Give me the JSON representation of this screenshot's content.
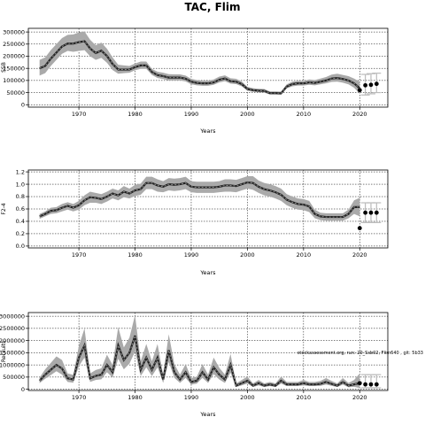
{
  "page": {
    "title": "TAC, Flim"
  },
  "chart_data": [
    {
      "type": "line",
      "id": "tac",
      "ylabel": "SSB",
      "xlabel": "Years",
      "xlim": [
        1961,
        2025
      ],
      "ylim": [
        -10000,
        315000
      ],
      "xticks": [
        1970,
        1980,
        1990,
        2000,
        2010,
        2020
      ],
      "yticks": [
        0,
        50000,
        100000,
        150000,
        200000,
        250000,
        300000
      ],
      "ytick_labels": [
        "0",
        "50000",
        "100000",
        "150000",
        "200000",
        "250000",
        "300000"
      ],
      "grid": true,
      "series": [
        {
          "x": [
            1963,
            1964,
            1965,
            1966,
            1967,
            1968,
            1969,
            1970,
            1971,
            1972,
            1973,
            1974,
            1975,
            1976,
            1977,
            1978,
            1979,
            1980,
            1981,
            1982,
            1983,
            1984,
            1985,
            1986,
            1987,
            1988,
            1989,
            1990,
            1991,
            1992,
            1993,
            1994,
            1995,
            1996,
            1997,
            1998,
            1999,
            2000,
            2001,
            2002,
            2003,
            2004,
            2005,
            2006,
            2007,
            2008,
            2009,
            2010,
            2011,
            2012,
            2013,
            2014,
            2015,
            2016,
            2017,
            2018,
            2019,
            2020
          ],
          "y": [
            150000,
            160000,
            190000,
            215000,
            240000,
            252000,
            252000,
            258000,
            262000,
            232000,
            213000,
            223000,
            201000,
            168000,
            145000,
            145000,
            145000,
            155000,
            162000,
            162000,
            135000,
            122000,
            118000,
            112000,
            112000,
            112000,
            107000,
            95000,
            90000,
            88000,
            88000,
            92000,
            103000,
            108000,
            97000,
            95000,
            85000,
            65000,
            60000,
            58000,
            57000,
            48000,
            48000,
            47000,
            75000,
            85000,
            88000,
            88000,
            92000,
            90000,
            95000,
            100000,
            108000,
            110000,
            106000,
            100000,
            88000,
            68000
          ],
          "lower": [
            120000,
            130000,
            160000,
            185000,
            210000,
            222000,
            218000,
            222000,
            225000,
            200000,
            185000,
            193000,
            173000,
            143000,
            128000,
            130000,
            132000,
            142000,
            148000,
            148000,
            123000,
            110000,
            106000,
            100000,
            100000,
            100000,
            96000,
            84000,
            80000,
            78000,
            78000,
            82000,
            92000,
            97000,
            87000,
            85000,
            76000,
            58000,
            53000,
            51000,
            50000,
            42000,
            42000,
            41000,
            67000,
            76000,
            79000,
            79000,
            82000,
            80000,
            84000,
            88000,
            94000,
            95000,
            91000,
            84000,
            70000,
            45000
          ],
          "upper": [
            185000,
            195000,
            225000,
            250000,
            275000,
            288000,
            290000,
            298000,
            302000,
            268000,
            245000,
            256000,
            231000,
            195000,
            165000,
            162000,
            160000,
            170000,
            178000,
            178000,
            148000,
            136000,
            132000,
            126000,
            125000,
            125000,
            120000,
            107000,
            102000,
            99000,
            99000,
            104000,
            116000,
            121000,
            109000,
            107000,
            96000,
            74000,
            68000,
            66000,
            65000,
            55000,
            55000,
            54000,
            84000,
            95000,
            98000,
            98000,
            104000,
            102000,
            108000,
            114000,
            124000,
            128000,
            123000,
            118000,
            108000,
            95000
          ]
        }
      ],
      "points": [
        {
          "x": 2020,
          "y": 60000
        },
        {
          "x": 2021,
          "y": 80000
        },
        {
          "x": 2022,
          "y": 82000
        },
        {
          "x": 2023,
          "y": 86000
        }
      ],
      "intervals": [
        {
          "x": 2021,
          "lower": 40000,
          "upper": 125000
        },
        {
          "x": 2022,
          "lower": 45000,
          "upper": 128000
        },
        {
          "x": 2023,
          "lower": 50000,
          "upper": 130000
        }
      ]
    },
    {
      "type": "line",
      "id": "fbar",
      "ylabel": "F2-4",
      "xlabel": "Years",
      "xlim": [
        1961,
        2025
      ],
      "ylim": [
        -0.03,
        1.23
      ],
      "xticks": [
        1970,
        1980,
        1990,
        2000,
        2010,
        2020
      ],
      "yticks": [
        0.0,
        0.2,
        0.4,
        0.6,
        0.8,
        1.0,
        1.2
      ],
      "ytick_labels": [
        "0.0",
        "0.2",
        "0.4",
        "0.6",
        "0.8",
        "1.0",
        "1.2"
      ],
      "grid": true,
      "series": [
        {
          "x": [
            1963,
            1964,
            1965,
            1966,
            1967,
            1968,
            1969,
            1970,
            1971,
            1972,
            1973,
            1974,
            1975,
            1976,
            1977,
            1978,
            1979,
            1980,
            1981,
            1982,
            1983,
            1984,
            1985,
            1986,
            1987,
            1988,
            1989,
            1990,
            1991,
            1992,
            1993,
            1994,
            1995,
            1996,
            1997,
            1998,
            1999,
            2000,
            2001,
            2002,
            2003,
            2004,
            2005,
            2006,
            2007,
            2008,
            2009,
            2010,
            2011,
            2012,
            2013,
            2014,
            2015,
            2016,
            2017,
            2018,
            2019,
            2020
          ],
          "y": [
            0.48,
            0.52,
            0.57,
            0.58,
            0.62,
            0.65,
            0.62,
            0.66,
            0.74,
            0.79,
            0.78,
            0.76,
            0.8,
            0.85,
            0.82,
            0.88,
            0.85,
            0.9,
            0.92,
            1.02,
            1.02,
            0.98,
            0.96,
            1.0,
            0.99,
            1.0,
            1.02,
            0.96,
            0.95,
            0.95,
            0.95,
            0.95,
            0.96,
            0.98,
            0.98,
            0.97,
            1.0,
            1.03,
            1.02,
            0.96,
            0.92,
            0.9,
            0.87,
            0.83,
            0.75,
            0.71,
            0.68,
            0.67,
            0.64,
            0.52,
            0.48,
            0.47,
            0.47,
            0.47,
            0.47,
            0.52,
            0.63,
            0.63
          ],
          "lower": [
            0.44,
            0.48,
            0.52,
            0.53,
            0.56,
            0.59,
            0.56,
            0.59,
            0.66,
            0.7,
            0.7,
            0.68,
            0.72,
            0.77,
            0.74,
            0.79,
            0.77,
            0.81,
            0.83,
            0.92,
            0.92,
            0.88,
            0.87,
            0.9,
            0.89,
            0.9,
            0.92,
            0.87,
            0.86,
            0.86,
            0.86,
            0.86,
            0.87,
            0.88,
            0.88,
            0.87,
            0.9,
            0.93,
            0.91,
            0.86,
            0.82,
            0.8,
            0.77,
            0.73,
            0.66,
            0.62,
            0.59,
            0.58,
            0.55,
            0.45,
            0.42,
            0.41,
            0.41,
            0.41,
            0.41,
            0.45,
            0.52,
            0.48
          ],
          "upper": [
            0.52,
            0.56,
            0.62,
            0.63,
            0.68,
            0.71,
            0.68,
            0.73,
            0.82,
            0.88,
            0.86,
            0.84,
            0.88,
            0.93,
            0.9,
            0.97,
            0.93,
            0.99,
            1.01,
            1.12,
            1.12,
            1.08,
            1.05,
            1.1,
            1.09,
            1.1,
            1.12,
            1.05,
            1.04,
            1.04,
            1.04,
            1.04,
            1.05,
            1.08,
            1.08,
            1.07,
            1.1,
            1.13,
            1.13,
            1.06,
            1.02,
            1.0,
            0.97,
            0.93,
            0.84,
            0.8,
            0.77,
            0.76,
            0.73,
            0.59,
            0.54,
            0.53,
            0.53,
            0.53,
            0.53,
            0.59,
            0.74,
            0.78
          ]
        }
      ],
      "points": [
        {
          "x": 2020,
          "y": 0.29
        },
        {
          "x": 2021,
          "y": 0.54
        },
        {
          "x": 2022,
          "y": 0.54
        },
        {
          "x": 2023,
          "y": 0.54
        }
      ],
      "intervals": [
        {
          "x": 2021,
          "lower": 0.38,
          "upper": 0.7
        },
        {
          "x": 2022,
          "lower": 0.38,
          "upper": 0.7
        },
        {
          "x": 2023,
          "lower": 0.38,
          "upper": 0.7
        }
      ]
    },
    {
      "type": "line",
      "id": "rec",
      "ylabel": "Recruits",
      "xlabel": "Years",
      "xlim": [
        1961,
        2025
      ],
      "ylim": [
        -50000,
        3150000
      ],
      "xticks": [
        1970,
        1980,
        1990,
        2000,
        2010,
        2020
      ],
      "yticks": [
        0,
        500000,
        1000000,
        1500000,
        2000000,
        2500000,
        3000000
      ],
      "ytick_labels": [
        "0",
        "500000",
        "1000000",
        "1500000",
        "2000000",
        "2500000",
        "3000000"
      ],
      "grid": true,
      "annotation": "stockassessment.org, run: 20_Ssb02, Flim640 , git: 5b33",
      "series": [
        {
          "x": [
            1963,
            1964,
            1965,
            1966,
            1967,
            1968,
            1969,
            1970,
            1971,
            1972,
            1973,
            1974,
            1975,
            1976,
            1977,
            1978,
            1979,
            1980,
            1981,
            1982,
            1983,
            1984,
            1985,
            1986,
            1987,
            1988,
            1989,
            1990,
            1991,
            1992,
            1993,
            1994,
            1995,
            1996,
            1997,
            1998,
            1999,
            2000,
            2001,
            2002,
            2003,
            2004,
            2005,
            2006,
            2007,
            2008,
            2009,
            2010,
            2011,
            2012,
            2013,
            2014,
            2015,
            2016,
            2017,
            2018,
            2019,
            2020
          ],
          "y": [
            350000,
            600000,
            800000,
            1000000,
            850000,
            450000,
            400000,
            1300000,
            1800000,
            450000,
            550000,
            600000,
            1000000,
            700000,
            1800000,
            1200000,
            1500000,
            2200000,
            800000,
            1300000,
            800000,
            1300000,
            400000,
            1600000,
            700000,
            400000,
            700000,
            300000,
            350000,
            700000,
            400000,
            900000,
            600000,
            400000,
            1000000,
            150000,
            250000,
            350000,
            150000,
            250000,
            150000,
            200000,
            150000,
            350000,
            200000,
            200000,
            200000,
            250000,
            200000,
            200000,
            220000,
            300000,
            220000,
            150000,
            300000,
            150000,
            200000,
            250000
          ],
          "lower": [
            250000,
            430000,
            580000,
            740000,
            600000,
            300000,
            270000,
            950000,
            1300000,
            300000,
            380000,
            410000,
            700000,
            480000,
            1250000,
            820000,
            1050000,
            1550000,
            540000,
            900000,
            540000,
            900000,
            260000,
            1120000,
            470000,
            260000,
            470000,
            190000,
            230000,
            470000,
            260000,
            620000,
            400000,
            260000,
            680000,
            90000,
            160000,
            230000,
            90000,
            160000,
            90000,
            130000,
            90000,
            230000,
            130000,
            130000,
            130000,
            160000,
            130000,
            130000,
            140000,
            190000,
            140000,
            90000,
            190000,
            80000,
            100000,
            50000
          ],
          "upper": [
            480000,
            820000,
            1080000,
            1350000,
            1200000,
            650000,
            590000,
            1780000,
            2500000,
            650000,
            790000,
            860000,
            1420000,
            1000000,
            2550000,
            1720000,
            2120000,
            3050000,
            1150000,
            1860000,
            1150000,
            1860000,
            600000,
            2260000,
            1030000,
            600000,
            1030000,
            460000,
            520000,
            1030000,
            600000,
            1300000,
            880000,
            600000,
            1450000,
            240000,
            380000,
            520000,
            240000,
            380000,
            240000,
            300000,
            240000,
            520000,
            300000,
            300000,
            300000,
            380000,
            300000,
            300000,
            340000,
            460000,
            340000,
            240000,
            460000,
            260000,
            380000,
            650000
          ]
        }
      ],
      "points": [
        {
          "x": 2020,
          "y": 250000
        },
        {
          "x": 2021,
          "y": 200000
        },
        {
          "x": 2022,
          "y": 200000
        },
        {
          "x": 2023,
          "y": 200000
        }
      ],
      "intervals": [
        {
          "x": 2021,
          "lower": 60000,
          "upper": 600000
        },
        {
          "x": 2022,
          "lower": 60000,
          "upper": 600000
        },
        {
          "x": 2023,
          "lower": 60000,
          "upper": 600000
        }
      ]
    }
  ]
}
